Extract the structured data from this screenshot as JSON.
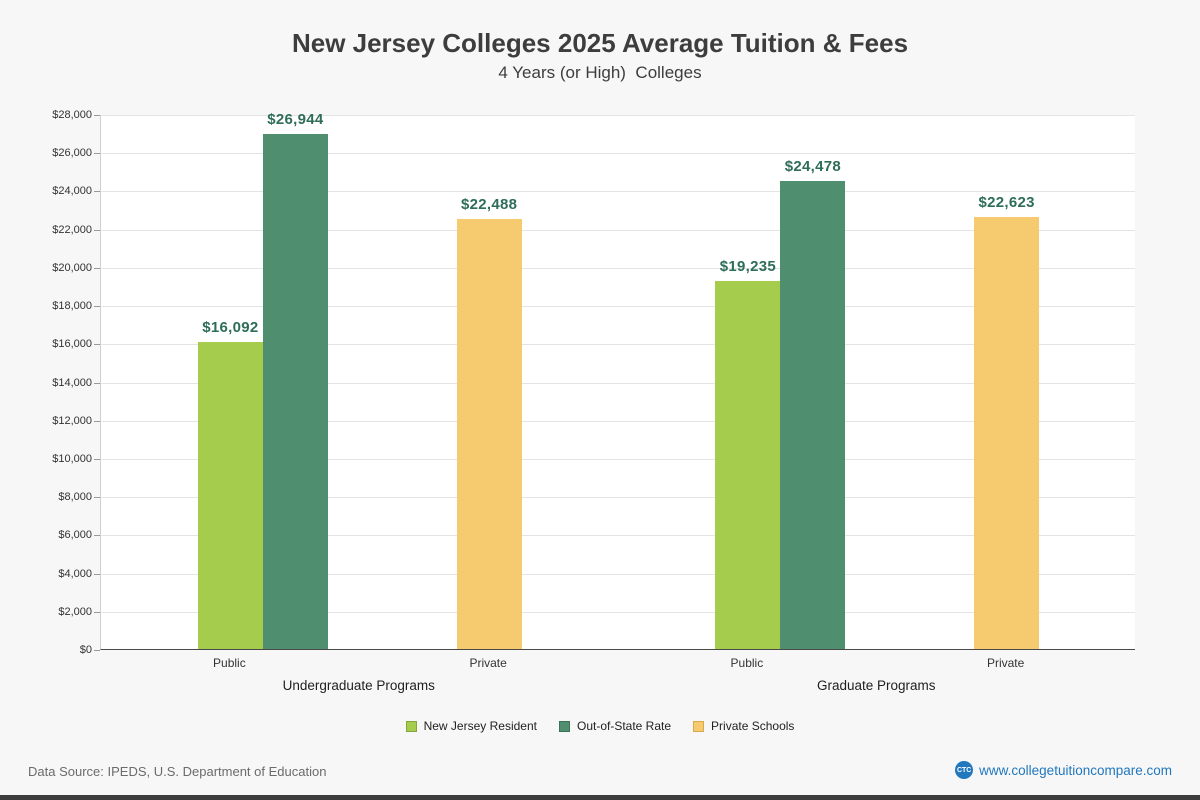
{
  "footer": {
    "source": "Data Source: IPEDS, U.S. Department of Education",
    "logo_text": "CTC",
    "website": "www.collegetuitioncompare.com"
  },
  "chart_data": {
    "type": "bar",
    "title": "New Jersey Colleges 2025 Average Tuition & Fees",
    "subtitle": "4 Years (or High)  Colleges",
    "ylim": [
      0,
      28000
    ],
    "ytick_step": 2000,
    "grid": true,
    "legend_position": "bottom",
    "groups": [
      {
        "label": "Undergraduate Programs",
        "categories": [
          {
            "label": "Public",
            "bars": [
              {
                "series": "New Jersey Resident",
                "value": 16092
              },
              {
                "series": "Out-of-State Rate",
                "value": 26944
              }
            ]
          },
          {
            "label": "Private",
            "bars": [
              {
                "series": "Private Schools",
                "value": 22488
              }
            ]
          }
        ]
      },
      {
        "label": "Graduate Programs",
        "categories": [
          {
            "label": "Public",
            "bars": [
              {
                "series": "New Jersey Resident",
                "value": 19235
              },
              {
                "series": "Out-of-State Rate",
                "value": 24478
              }
            ]
          },
          {
            "label": "Private",
            "bars": [
              {
                "series": "Private Schools",
                "value": 22623
              }
            ]
          }
        ]
      }
    ],
    "legend": [
      "New Jersey Resident",
      "Out-of-State Rate",
      "Private Schools"
    ],
    "series_colors": {
      "New Jersey Resident": "#a6cc4e",
      "Out-of-State Rate": "#4f8e6e",
      "Private Schools": "#f6cb70"
    },
    "series_border_colors": {
      "New Jersey Resident": "#84a63c",
      "Out-of-State Rate": "#3c7257",
      "Private Schools": "#d9a94e"
    },
    "value_label_color": "#2e6d59"
  }
}
